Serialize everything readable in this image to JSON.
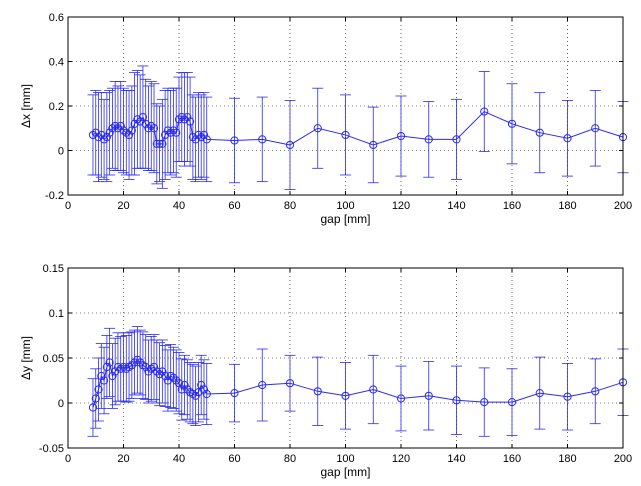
{
  "chart_data": [
    {
      "type": "scatter",
      "title": "",
      "xlabel": "gap [mm]",
      "ylabel": "Δx [mm]",
      "xlim": [
        0,
        200
      ],
      "ylim": [
        -0.2,
        0.6
      ],
      "xticks": [
        0,
        20,
        40,
        60,
        80,
        100,
        120,
        140,
        160,
        180,
        200
      ],
      "yticks": [
        -0.2,
        0,
        0.2,
        0.4,
        0.6
      ],
      "xtick_labels": [
        "0",
        "20",
        "40",
        "60",
        "80",
        "100",
        "120",
        "140",
        "160",
        "180",
        "200"
      ],
      "ytick_labels": [
        "-0.2",
        "0",
        "0.2",
        "0.4",
        "0.6"
      ],
      "grid": true,
      "line_color": "#2a2af0",
      "marker": "circle",
      "error_bars": true,
      "series": [
        {
          "x": [
            9,
            10,
            11,
            12,
            13,
            14,
            15,
            16,
            17,
            18,
            19,
            20,
            21,
            22,
            23,
            24,
            25,
            26,
            27,
            28,
            29,
            30,
            31,
            32,
            33,
            34,
            35,
            36,
            37,
            38,
            39,
            40,
            41,
            42,
            43,
            44,
            45,
            46,
            47,
            48,
            49,
            50,
            60,
            70,
            80,
            90,
            100,
            110,
            120,
            130,
            140,
            150,
            160,
            170,
            180,
            190,
            200
          ],
          "y": [
            0.07,
            0.08,
            0.06,
            0.07,
            0.05,
            0.06,
            0.08,
            0.1,
            0.11,
            0.1,
            0.11,
            0.09,
            0.08,
            0.07,
            0.09,
            0.12,
            0.14,
            0.13,
            0.15,
            0.12,
            0.1,
            0.11,
            0.1,
            0.03,
            0.03,
            0.03,
            0.07,
            0.09,
            0.08,
            0.09,
            0.08,
            0.14,
            0.15,
            0.14,
            0.15,
            0.13,
            0.06,
            0.05,
            0.07,
            0.06,
            0.07,
            0.05,
            0.045,
            0.05,
            0.025,
            0.1,
            0.07,
            0.025,
            0.065,
            0.05,
            0.05,
            0.175,
            0.12,
            0.08,
            0.055,
            0.1,
            0.06
          ],
          "err": [
            0.18,
            0.19,
            0.2,
            0.19,
            0.18,
            0.2,
            0.19,
            0.18,
            0.2,
            0.19,
            0.2,
            0.19,
            0.19,
            0.2,
            0.2,
            0.23,
            0.22,
            0.21,
            0.23,
            0.2,
            0.19,
            0.2,
            0.2,
            0.18,
            0.17,
            0.2,
            0.2,
            0.19,
            0.19,
            0.19,
            0.2,
            0.19,
            0.2,
            0.21,
            0.2,
            0.2,
            0.19,
            0.19,
            0.19,
            0.19,
            0.19,
            0.19,
            0.19,
            0.19,
            0.2,
            0.18,
            0.18,
            0.17,
            0.18,
            0.17,
            0.18,
            0.18,
            0.18,
            0.18,
            0.17,
            0.17,
            0.16
          ]
        }
      ]
    },
    {
      "type": "scatter",
      "title": "",
      "xlabel": "gap [mm]",
      "ylabel": "Δy [mm]",
      "xlim": [
        0,
        200
      ],
      "ylim": [
        -0.05,
        0.15
      ],
      "xticks": [
        0,
        20,
        40,
        60,
        80,
        100,
        120,
        140,
        160,
        180,
        200
      ],
      "yticks": [
        -0.05,
        0,
        0.05,
        0.1,
        0.15
      ],
      "xtick_labels": [
        "0",
        "20",
        "40",
        "60",
        "80",
        "100",
        "120",
        "140",
        "160",
        "180",
        "200"
      ],
      "ytick_labels": [
        "-0.05",
        "0",
        "0.05",
        "0.1",
        "0.15"
      ],
      "grid": true,
      "line_color": "#2a2af0",
      "marker": "circle",
      "error_bars": true,
      "series": [
        {
          "x": [
            9,
            10,
            11,
            12,
            13,
            14,
            15,
            16,
            17,
            18,
            19,
            20,
            21,
            22,
            23,
            24,
            25,
            26,
            27,
            28,
            29,
            30,
            31,
            32,
            33,
            34,
            35,
            36,
            37,
            38,
            39,
            40,
            41,
            42,
            43,
            44,
            45,
            46,
            47,
            48,
            49,
            50,
            60,
            70,
            80,
            90,
            100,
            110,
            120,
            130,
            140,
            150,
            160,
            170,
            180,
            190,
            200
          ],
          "y": [
            -0.005,
            0.005,
            0.015,
            0.03,
            0.025,
            0.04,
            0.045,
            0.03,
            0.035,
            0.04,
            0.038,
            0.04,
            0.038,
            0.04,
            0.042,
            0.045,
            0.048,
            0.045,
            0.042,
            0.04,
            0.035,
            0.038,
            0.04,
            0.035,
            0.032,
            0.035,
            0.03,
            0.025,
            0.03,
            0.028,
            0.025,
            0.022,
            0.015,
            0.02,
            0.015,
            0.012,
            0.01,
            0.008,
            0.012,
            0.02,
            0.015,
            0.01,
            0.011,
            0.02,
            0.022,
            0.013,
            0.008,
            0.015,
            0.005,
            0.008,
            0.003,
            0.001,
            0.001,
            0.011,
            0.007,
            0.013,
            0.023
          ],
          "err": [
            0.032,
            0.033,
            0.035,
            0.036,
            0.037,
            0.035,
            0.038,
            0.036,
            0.037,
            0.038,
            0.036,
            0.038,
            0.037,
            0.038,
            0.037,
            0.036,
            0.037,
            0.036,
            0.037,
            0.036,
            0.035,
            0.036,
            0.036,
            0.035,
            0.035,
            0.035,
            0.034,
            0.034,
            0.035,
            0.034,
            0.034,
            0.034,
            0.034,
            0.033,
            0.033,
            0.033,
            0.033,
            0.033,
            0.033,
            0.033,
            0.033,
            0.034,
            0.032,
            0.04,
            0.031,
            0.038,
            0.037,
            0.038,
            0.036,
            0.038,
            0.038,
            0.038,
            0.037,
            0.04,
            0.037,
            0.036,
            0.037
          ]
        }
      ]
    }
  ]
}
